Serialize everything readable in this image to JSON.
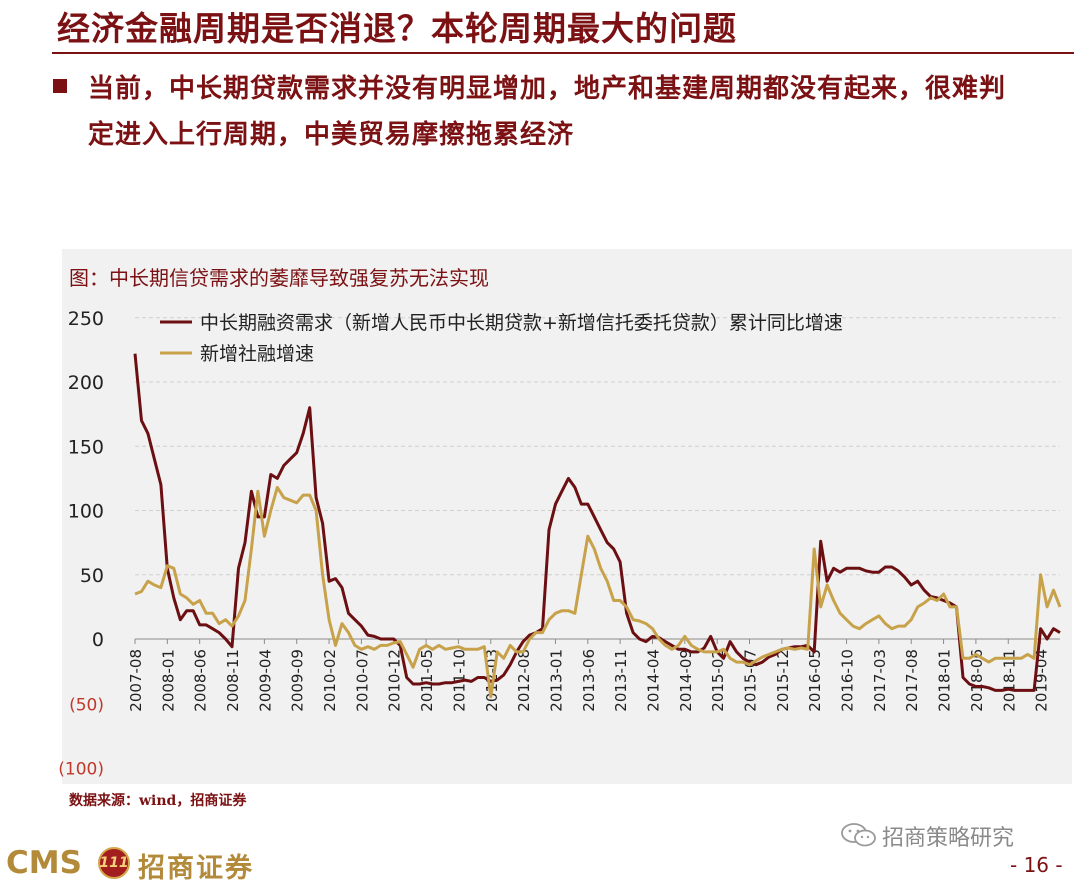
{
  "slide": {
    "title": "经济金融周期是否消退？本轮周期最大的问题",
    "bullet": "当前，中长期贷款需求并没有明显增加，地产和基建周期都没有起来，很难判定进入上行周期，中美贸易摩擦拖累经济"
  },
  "chart": {
    "caption": "图：中长期信贷需求的萎靡导致强复苏无法实现",
    "source": "数据来源：wind，招商证券"
  },
  "footer": {
    "logo_text": "CMS",
    "logo_badge": "111",
    "logo_cn": "招商证券",
    "watermark": "招商策略研究",
    "page": "- 16 -"
  },
  "colors": {
    "brand": "#7b1113",
    "series1": "#6b0f12",
    "series2": "#c7a24a",
    "negative_tick": "#c0392b",
    "panel_bg": "#f1f1f1"
  },
  "chart_data": {
    "type": "line",
    "title": "图：中长期信贷需求的萎靡导致强复苏无法实现",
    "ylim": [
      -100,
      250
    ],
    "yticks": [
      250,
      200,
      150,
      100,
      50,
      0,
      -50,
      -100
    ],
    "ytick_labels": [
      "250",
      "200",
      "150",
      "100",
      "50",
      "0",
      "(50)",
      "(100)"
    ],
    "grid": "horizontal dashed",
    "legend": "top-left",
    "x_ticks": [
      "2007-08",
      "2008-01",
      "2008-06",
      "2008-11",
      "2009-04",
      "2009-09",
      "2010-02",
      "2010-07",
      "2010-12",
      "2011-05",
      "2011-10",
      "2012-03",
      "2012-08",
      "2013-01",
      "2013-06",
      "2013-11",
      "2014-04",
      "2014-09",
      "2015-02",
      "2015-07",
      "2015-12",
      "2016-05",
      "2016-10",
      "2017-03",
      "2017-08",
      "2018-01",
      "2018-06",
      "2018-11",
      "2019-04"
    ],
    "x_start": "2007-08",
    "x_end": "2019-06",
    "series": [
      {
        "name": "中长期融资需求（新增人民币中长期贷款+新增信托委托贷款）累计同比增速",
        "color": "#6b0f12",
        "values": [
          222,
          170,
          160,
          140,
          120,
          55,
          32,
          15,
          22,
          22,
          11,
          11,
          8,
          5,
          0,
          -6,
          55,
          75,
          115,
          95,
          95,
          128,
          125,
          135,
          140,
          145,
          160,
          180,
          110,
          90,
          45,
          47,
          40,
          20,
          15,
          10,
          3,
          2,
          0,
          0,
          0,
          -5,
          -30,
          -35,
          -35,
          -34,
          -35,
          -35,
          -34,
          -34,
          -33,
          -32,
          -33,
          -30,
          -30,
          -33,
          -32,
          -28,
          -20,
          -10,
          -2,
          3,
          5,
          8,
          85,
          105,
          115,
          125,
          118,
          105,
          105,
          95,
          85,
          75,
          70,
          60,
          20,
          5,
          0,
          -2,
          2,
          1,
          -2,
          -5,
          -8,
          -8,
          -10,
          -10,
          -7,
          2,
          -10,
          -15,
          -2,
          -10,
          -15,
          -18,
          -20,
          -18,
          -14,
          -12,
          -8,
          -7,
          -6,
          -6,
          -5,
          -10,
          76,
          45,
          55,
          52,
          55,
          55,
          55,
          53,
          52,
          52,
          56,
          56,
          53,
          48,
          42,
          45,
          38,
          33,
          32,
          30,
          28,
          25,
          -30,
          -35,
          -37,
          -37,
          -38,
          -40,
          -40,
          -39,
          -40,
          -40,
          -40,
          -40,
          8,
          0,
          8,
          5
        ]
      },
      {
        "name": "新增社融增速",
        "color": "#c7a24a",
        "values": [
          35,
          37,
          45,
          42,
          40,
          57,
          55,
          35,
          32,
          27,
          30,
          20,
          20,
          12,
          15,
          10,
          18,
          30,
          70,
          115,
          80,
          100,
          118,
          110,
          108,
          106,
          112,
          112,
          100,
          50,
          15,
          -5,
          12,
          5,
          -5,
          -8,
          -6,
          -8,
          -5,
          -5,
          -3,
          -2,
          -12,
          -22,
          -8,
          -5,
          -8,
          -5,
          -8,
          -7,
          -6,
          -8,
          -8,
          -8,
          -6,
          -45,
          -10,
          -15,
          -5,
          -10,
          -10,
          0,
          5,
          5,
          15,
          20,
          22,
          22,
          20,
          50,
          80,
          70,
          55,
          45,
          30,
          30,
          25,
          15,
          14,
          12,
          8,
          0,
          -5,
          -8,
          -5,
          2,
          -5,
          -8,
          -10,
          -10,
          -10,
          -8,
          -15,
          -18,
          -18,
          -20,
          -17,
          -14,
          -12,
          -10,
          -8,
          -7,
          -8,
          -7,
          -8,
          70,
          25,
          42,
          30,
          20,
          15,
          10,
          8,
          12,
          15,
          18,
          12,
          8,
          10,
          10,
          15,
          25,
          28,
          32,
          30,
          35,
          25,
          25,
          -15,
          -15,
          -12,
          -15,
          -18,
          -15,
          -15,
          -15,
          -15,
          -15,
          -12,
          -15,
          50,
          25,
          38,
          25
        ]
      }
    ]
  }
}
